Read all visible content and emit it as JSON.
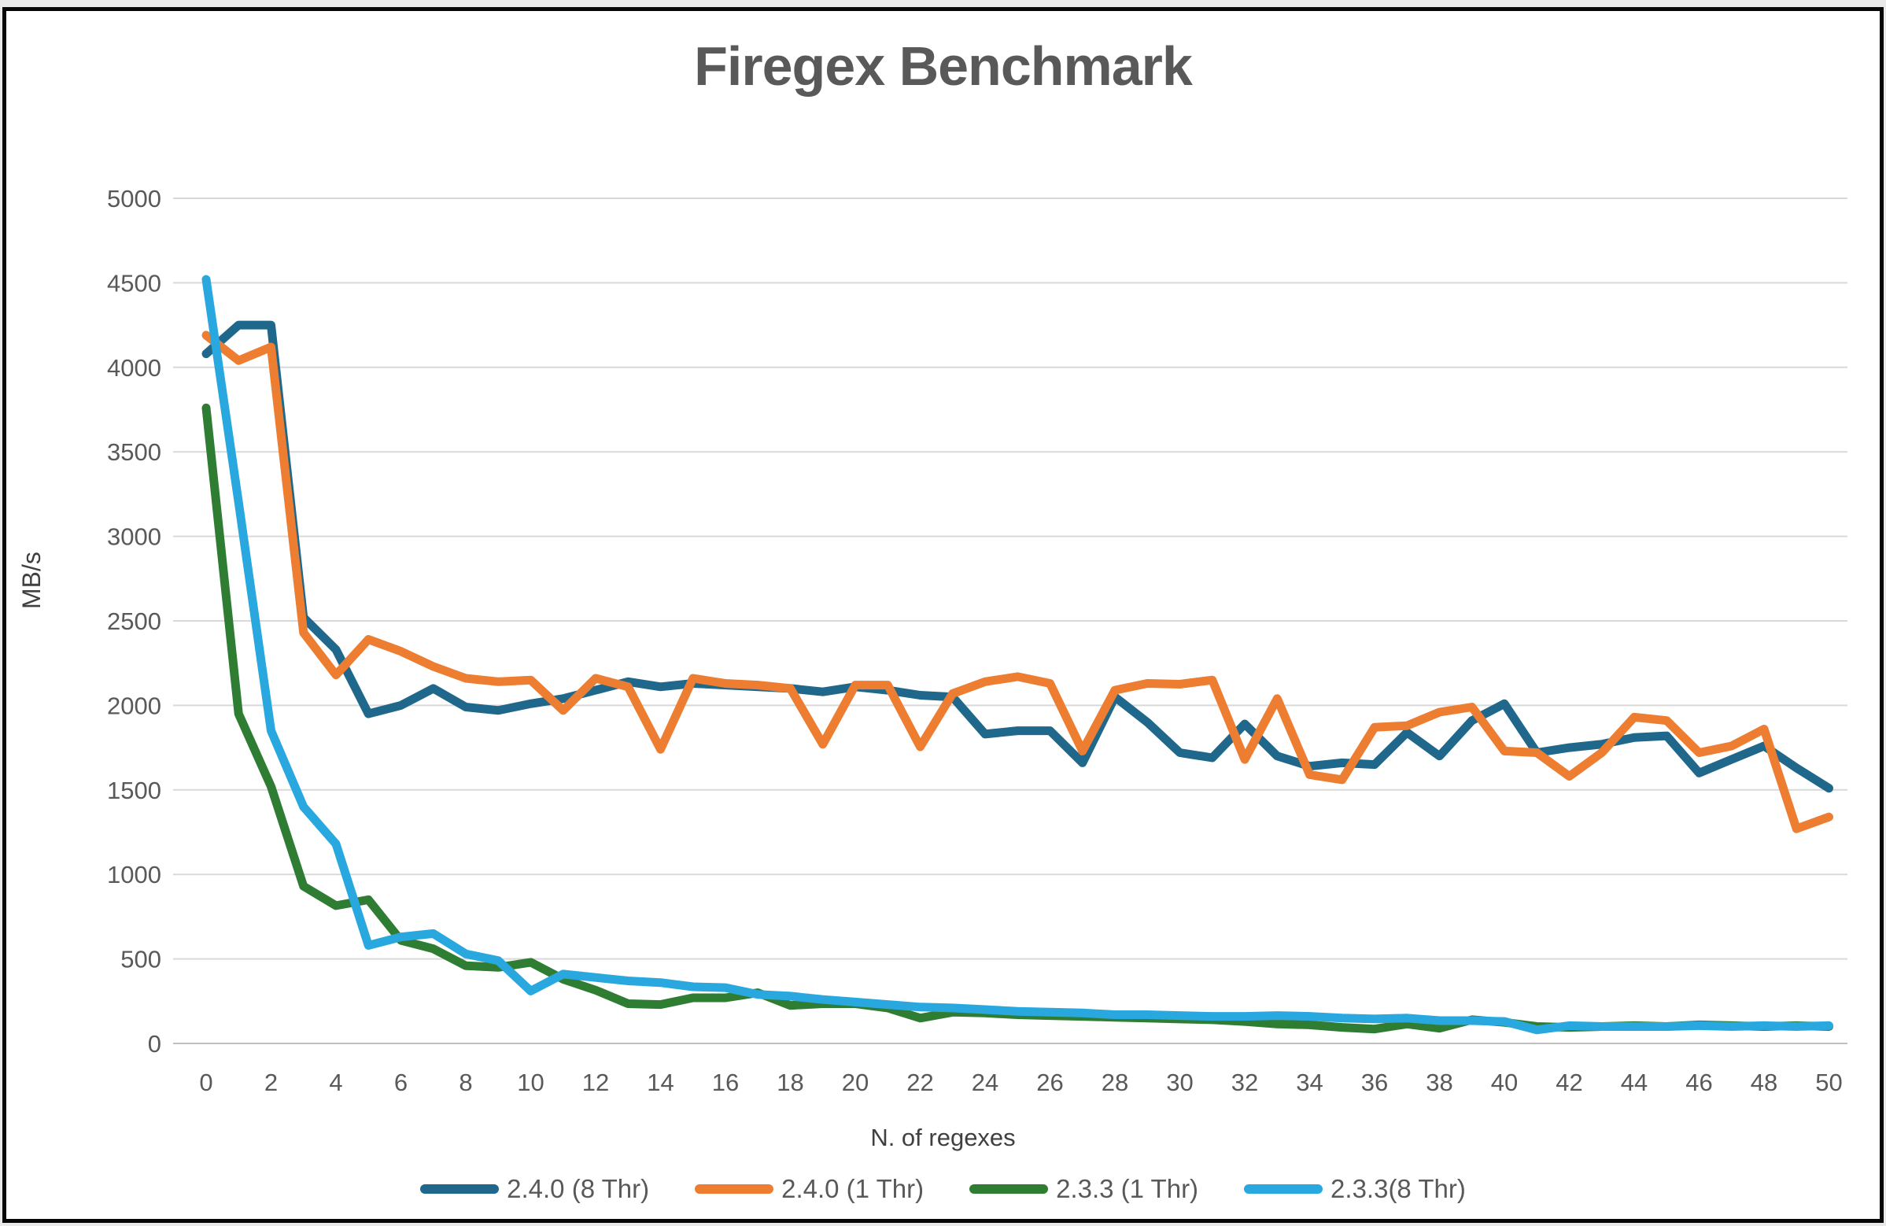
{
  "chart_data": {
    "type": "line",
    "title": "Firegex Benchmark",
    "xlabel": "N. of regexes",
    "ylabel": "MB/s",
    "xlim": [
      0,
      50
    ],
    "ylim": [
      0,
      5000
    ],
    "xticks": [
      0,
      2,
      4,
      6,
      8,
      10,
      12,
      14,
      16,
      18,
      20,
      22,
      24,
      26,
      28,
      30,
      32,
      34,
      36,
      38,
      40,
      42,
      44,
      46,
      48,
      50
    ],
    "yticks": [
      0,
      500,
      1000,
      1500,
      2000,
      2500,
      3000,
      3500,
      4000,
      4500,
      5000
    ],
    "grid": true,
    "legend_position": "bottom",
    "x": [
      0,
      1,
      2,
      3,
      4,
      5,
      6,
      7,
      8,
      9,
      10,
      11,
      12,
      13,
      14,
      15,
      16,
      17,
      18,
      19,
      20,
      21,
      22,
      23,
      24,
      25,
      26,
      27,
      28,
      29,
      30,
      31,
      32,
      33,
      34,
      35,
      36,
      37,
      38,
      39,
      40,
      41,
      42,
      43,
      44,
      45,
      46,
      47,
      48,
      49,
      50
    ],
    "series": [
      {
        "name": "2.4.0 (8 Thr)",
        "color": "#1f688c",
        "values": [
          4080,
          4250,
          4250,
          2520,
          2330,
          1950,
          2000,
          2100,
          1990,
          1970,
          2010,
          2040,
          2090,
          2140,
          2110,
          2130,
          2120,
          2110,
          2100,
          2080,
          2110,
          2090,
          2060,
          2050,
          1830,
          1850,
          1850,
          1660,
          2050,
          1900,
          1720,
          1690,
          1890,
          1700,
          1640,
          1660,
          1650,
          1840,
          1700,
          1910,
          2010,
          1720,
          1750,
          1770,
          1810,
          1820,
          1600,
          1680,
          1760,
          1630,
          1510
        ]
      },
      {
        "name": "2.4.0 (1 Thr)",
        "color": "#ed7d31",
        "values": [
          4190,
          4040,
          4120,
          2430,
          2180,
          2390,
          2320,
          2230,
          2160,
          2140,
          2150,
          1970,
          2160,
          2110,
          1740,
          2160,
          2130,
          2120,
          2100,
          1770,
          2120,
          2120,
          1755,
          2070,
          2140,
          2170,
          2130,
          1730,
          2090,
          2130,
          2125,
          2150,
          1680,
          2040,
          1590,
          1560,
          1870,
          1880,
          1960,
          1990,
          1730,
          1720,
          1580,
          1720,
          1930,
          1910,
          1720,
          1760,
          1860,
          1270,
          1340
        ]
      },
      {
        "name": "2.3.3 (1 Thr)",
        "color": "#2e7d32",
        "values": [
          3760,
          1950,
          1520,
          930,
          815,
          850,
          610,
          560,
          460,
          450,
          480,
          380,
          315,
          235,
          230,
          270,
          270,
          300,
          225,
          235,
          235,
          210,
          150,
          185,
          180,
          170,
          165,
          160,
          155,
          150,
          145,
          140,
          130,
          115,
          110,
          95,
          85,
          115,
          90,
          140,
          125,
          100,
          95,
          100,
          105,
          100,
          110,
          105,
          100,
          105,
          100
        ]
      },
      {
        "name": "2.3.3(8 Thr)",
        "color": "#29a8e0",
        "values": [
          4520,
          3200,
          1850,
          1400,
          1180,
          580,
          630,
          650,
          530,
          490,
          310,
          410,
          390,
          370,
          360,
          335,
          330,
          290,
          280,
          260,
          245,
          230,
          215,
          210,
          200,
          190,
          185,
          180,
          170,
          170,
          165,
          160,
          160,
          165,
          160,
          150,
          145,
          150,
          135,
          135,
          130,
          80,
          105,
          100,
          100,
          100,
          105,
          100,
          105,
          100,
          105
        ]
      }
    ]
  }
}
